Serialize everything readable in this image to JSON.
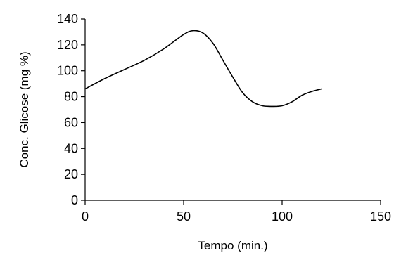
{
  "chart_data": {
    "type": "line",
    "xlabel": "Tempo (min.)",
    "ylabel": "Conc. Glicose (mg %)",
    "xlim": [
      0,
      150
    ],
    "ylim": [
      0,
      140
    ],
    "xticks": [
      0,
      50,
      100,
      150
    ],
    "yticks": [
      0,
      20,
      40,
      60,
      80,
      100,
      120,
      140
    ],
    "grid": false,
    "legend": "none",
    "series": [
      {
        "color": "#000000",
        "x": [
          0,
          10,
          20,
          30,
          40,
          50,
          55,
          60,
          65,
          70,
          75,
          80,
          85,
          90,
          95,
          100,
          105,
          110,
          115,
          120
        ],
        "y": [
          86,
          94,
          101,
          108,
          117,
          128,
          131,
          129,
          121,
          108,
          95,
          83,
          76,
          73,
          72.5,
          73,
          76,
          81,
          84,
          86
        ]
      }
    ],
    "axis_color": "#000000",
    "line_color": "#000000"
  }
}
